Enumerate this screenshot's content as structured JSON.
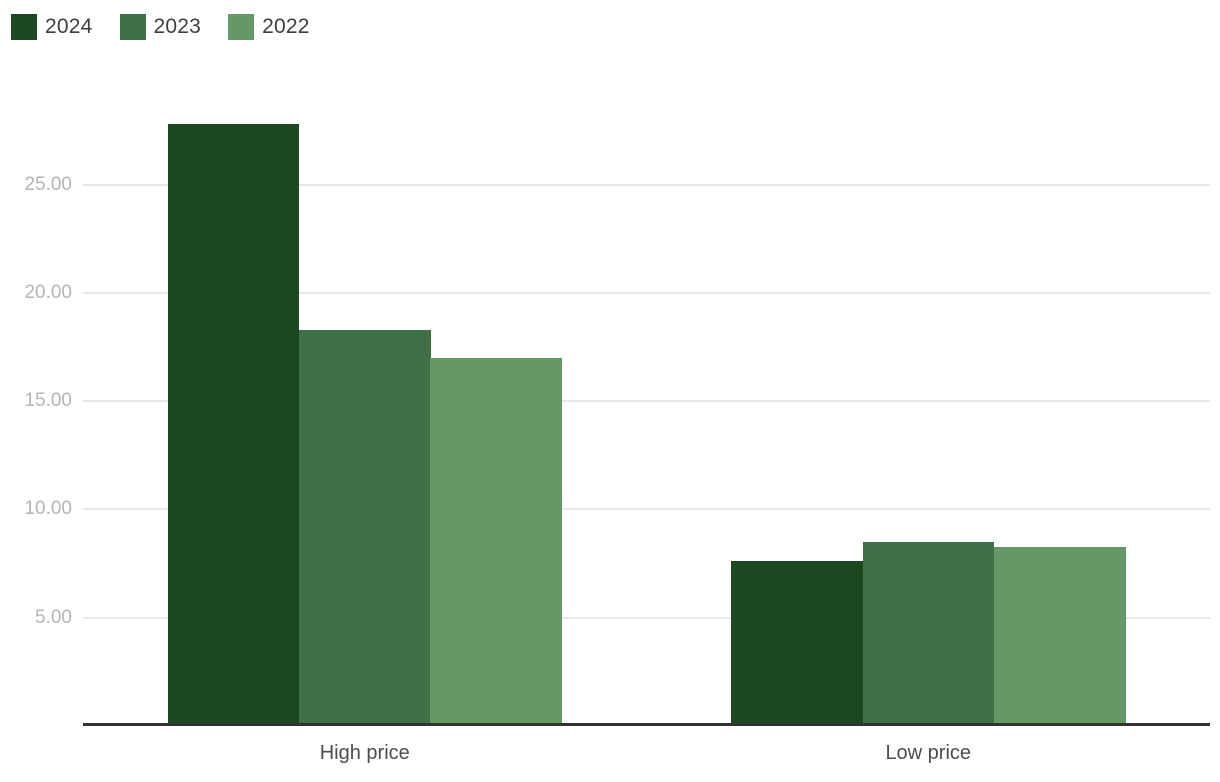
{
  "chart_data": {
    "type": "bar",
    "title": "",
    "xlabel": "",
    "ylabel": "",
    "categories": [
      "High price",
      "Low price"
    ],
    "series": [
      {
        "name": "2024",
        "color": "#1c4821",
        "values": [
          27.8,
          7.6
        ]
      },
      {
        "name": "2023",
        "color": "#407046",
        "values": [
          18.3,
          8.5
        ]
      },
      {
        "name": "2022",
        "color": "#649967",
        "values": [
          17.0,
          8.25
        ]
      }
    ],
    "ylim": [
      0,
      30
    ],
    "yticks": [
      5,
      10,
      15,
      20,
      25
    ],
    "ytick_labels": [
      "5.00",
      "10.00",
      "15.00",
      "20.00",
      "25.00"
    ],
    "grid": true,
    "legend_position": "top-left"
  },
  "colors": {
    "background": "#ffffff",
    "grid_line": "#e8e8e8",
    "axis_line": "#333333",
    "tick_label": "#b5b5b5",
    "category_label": "#4d4d4d",
    "legend_label": "#3f3f3f"
  }
}
